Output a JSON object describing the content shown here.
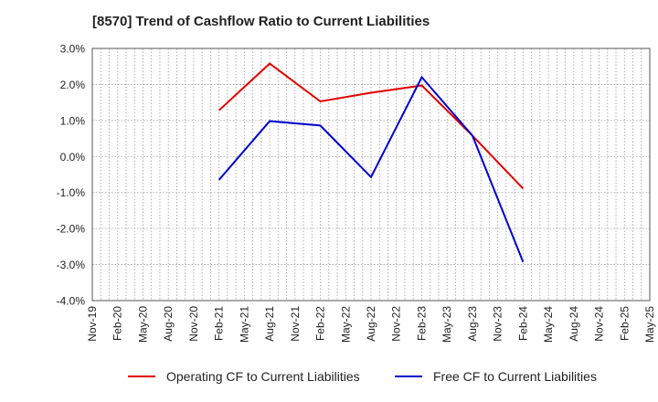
{
  "title": "[8570]  Trend of Cashflow Ratio to Current Liabilities",
  "chart_data": {
    "type": "line",
    "title": "[8570]  Trend of Cashflow Ratio to Current Liabilities",
    "xlabel": "",
    "ylabel": "",
    "categories": [
      "Nov-19",
      "Feb-20",
      "May-20",
      "Aug-20",
      "Nov-20",
      "Feb-21",
      "May-21",
      "Aug-21",
      "Nov-21",
      "Feb-22",
      "May-22",
      "Aug-22",
      "Nov-22",
      "Feb-23",
      "May-23",
      "Aug-23",
      "Nov-23",
      "Feb-24",
      "May-24",
      "Aug-24",
      "Nov-24",
      "Feb-25",
      "May-25"
    ],
    "yticks": [
      "3.0%",
      "2.0%",
      "1.0%",
      "0.0%",
      "-1.0%",
      "-2.0%",
      "-3.0%",
      "-4.0%"
    ],
    "ylim": [
      -4.0,
      3.0
    ],
    "grid": true,
    "legend_position": "bottom",
    "series": [
      {
        "name": "Operating CF to Current Liabilities",
        "color": "#e00000",
        "values": [
          null,
          null,
          null,
          null,
          null,
          1.28,
          null,
          2.58,
          null,
          1.53,
          null,
          1.77,
          null,
          1.97,
          null,
          0.58,
          null,
          -0.89,
          null,
          null,
          null,
          null,
          null
        ]
      },
      {
        "name": "Free CF to Current Liabilities",
        "color": "#0000cc",
        "values": [
          null,
          null,
          null,
          null,
          null,
          -0.65,
          null,
          0.98,
          null,
          0.86,
          null,
          -0.57,
          null,
          2.2,
          null,
          0.58,
          null,
          -2.93,
          null,
          null,
          null,
          null,
          null
        ]
      }
    ]
  }
}
